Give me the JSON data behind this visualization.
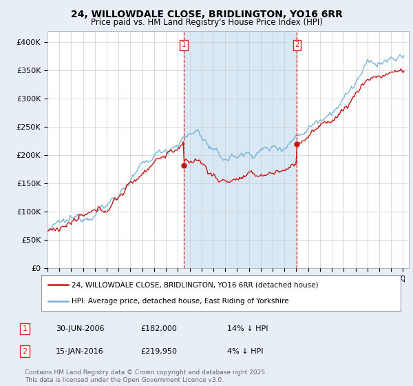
{
  "title": "24, WILLOWDALE CLOSE, BRIDLINGTON, YO16 6RR",
  "subtitle": "Price paid vs. HM Land Registry's House Price Index (HPI)",
  "ylabel_ticks": [
    "£0",
    "£50K",
    "£100K",
    "£150K",
    "£200K",
    "£250K",
    "£300K",
    "£350K",
    "£400K"
  ],
  "ytick_values": [
    0,
    50000,
    100000,
    150000,
    200000,
    250000,
    300000,
    350000,
    400000
  ],
  "ylim": [
    0,
    420000
  ],
  "hpi_color": "#7ab3d8",
  "price_color": "#cc1111",
  "shade_color": "#d8e8f5",
  "vline_color": "#dd2222",
  "transaction1": {
    "date_num": 2006.5,
    "price": 182000,
    "label": "1",
    "date_str": "30-JUN-2006",
    "hpi_pct": "14% ↓ HPI"
  },
  "transaction2": {
    "date_num": 2016.04,
    "price": 219950,
    "label": "2",
    "date_str": "15-JAN-2016",
    "hpi_pct": "4% ↓ HPI"
  },
  "legend_line1": "24, WILLOWDALE CLOSE, BRIDLINGTON, YO16 6RR (detached house)",
  "legend_line2": "HPI: Average price, detached house, East Riding of Yorkshire",
  "footnote": "Contains HM Land Registry data © Crown copyright and database right 2025.\nThis data is licensed under the Open Government Licence v3.0.",
  "table_rows": [
    [
      "1",
      "30-JUN-2006",
      "£182,000",
      "14% ↓ HPI"
    ],
    [
      "2",
      "15-JAN-2016",
      "£219,950",
      "4% ↓ HPI"
    ]
  ],
  "background_color": "#e8eef5",
  "plot_bg_color": "#ffffff",
  "grid_color": "#cccccc",
  "xlim_start": 1995,
  "xlim_end": 2025.5
}
